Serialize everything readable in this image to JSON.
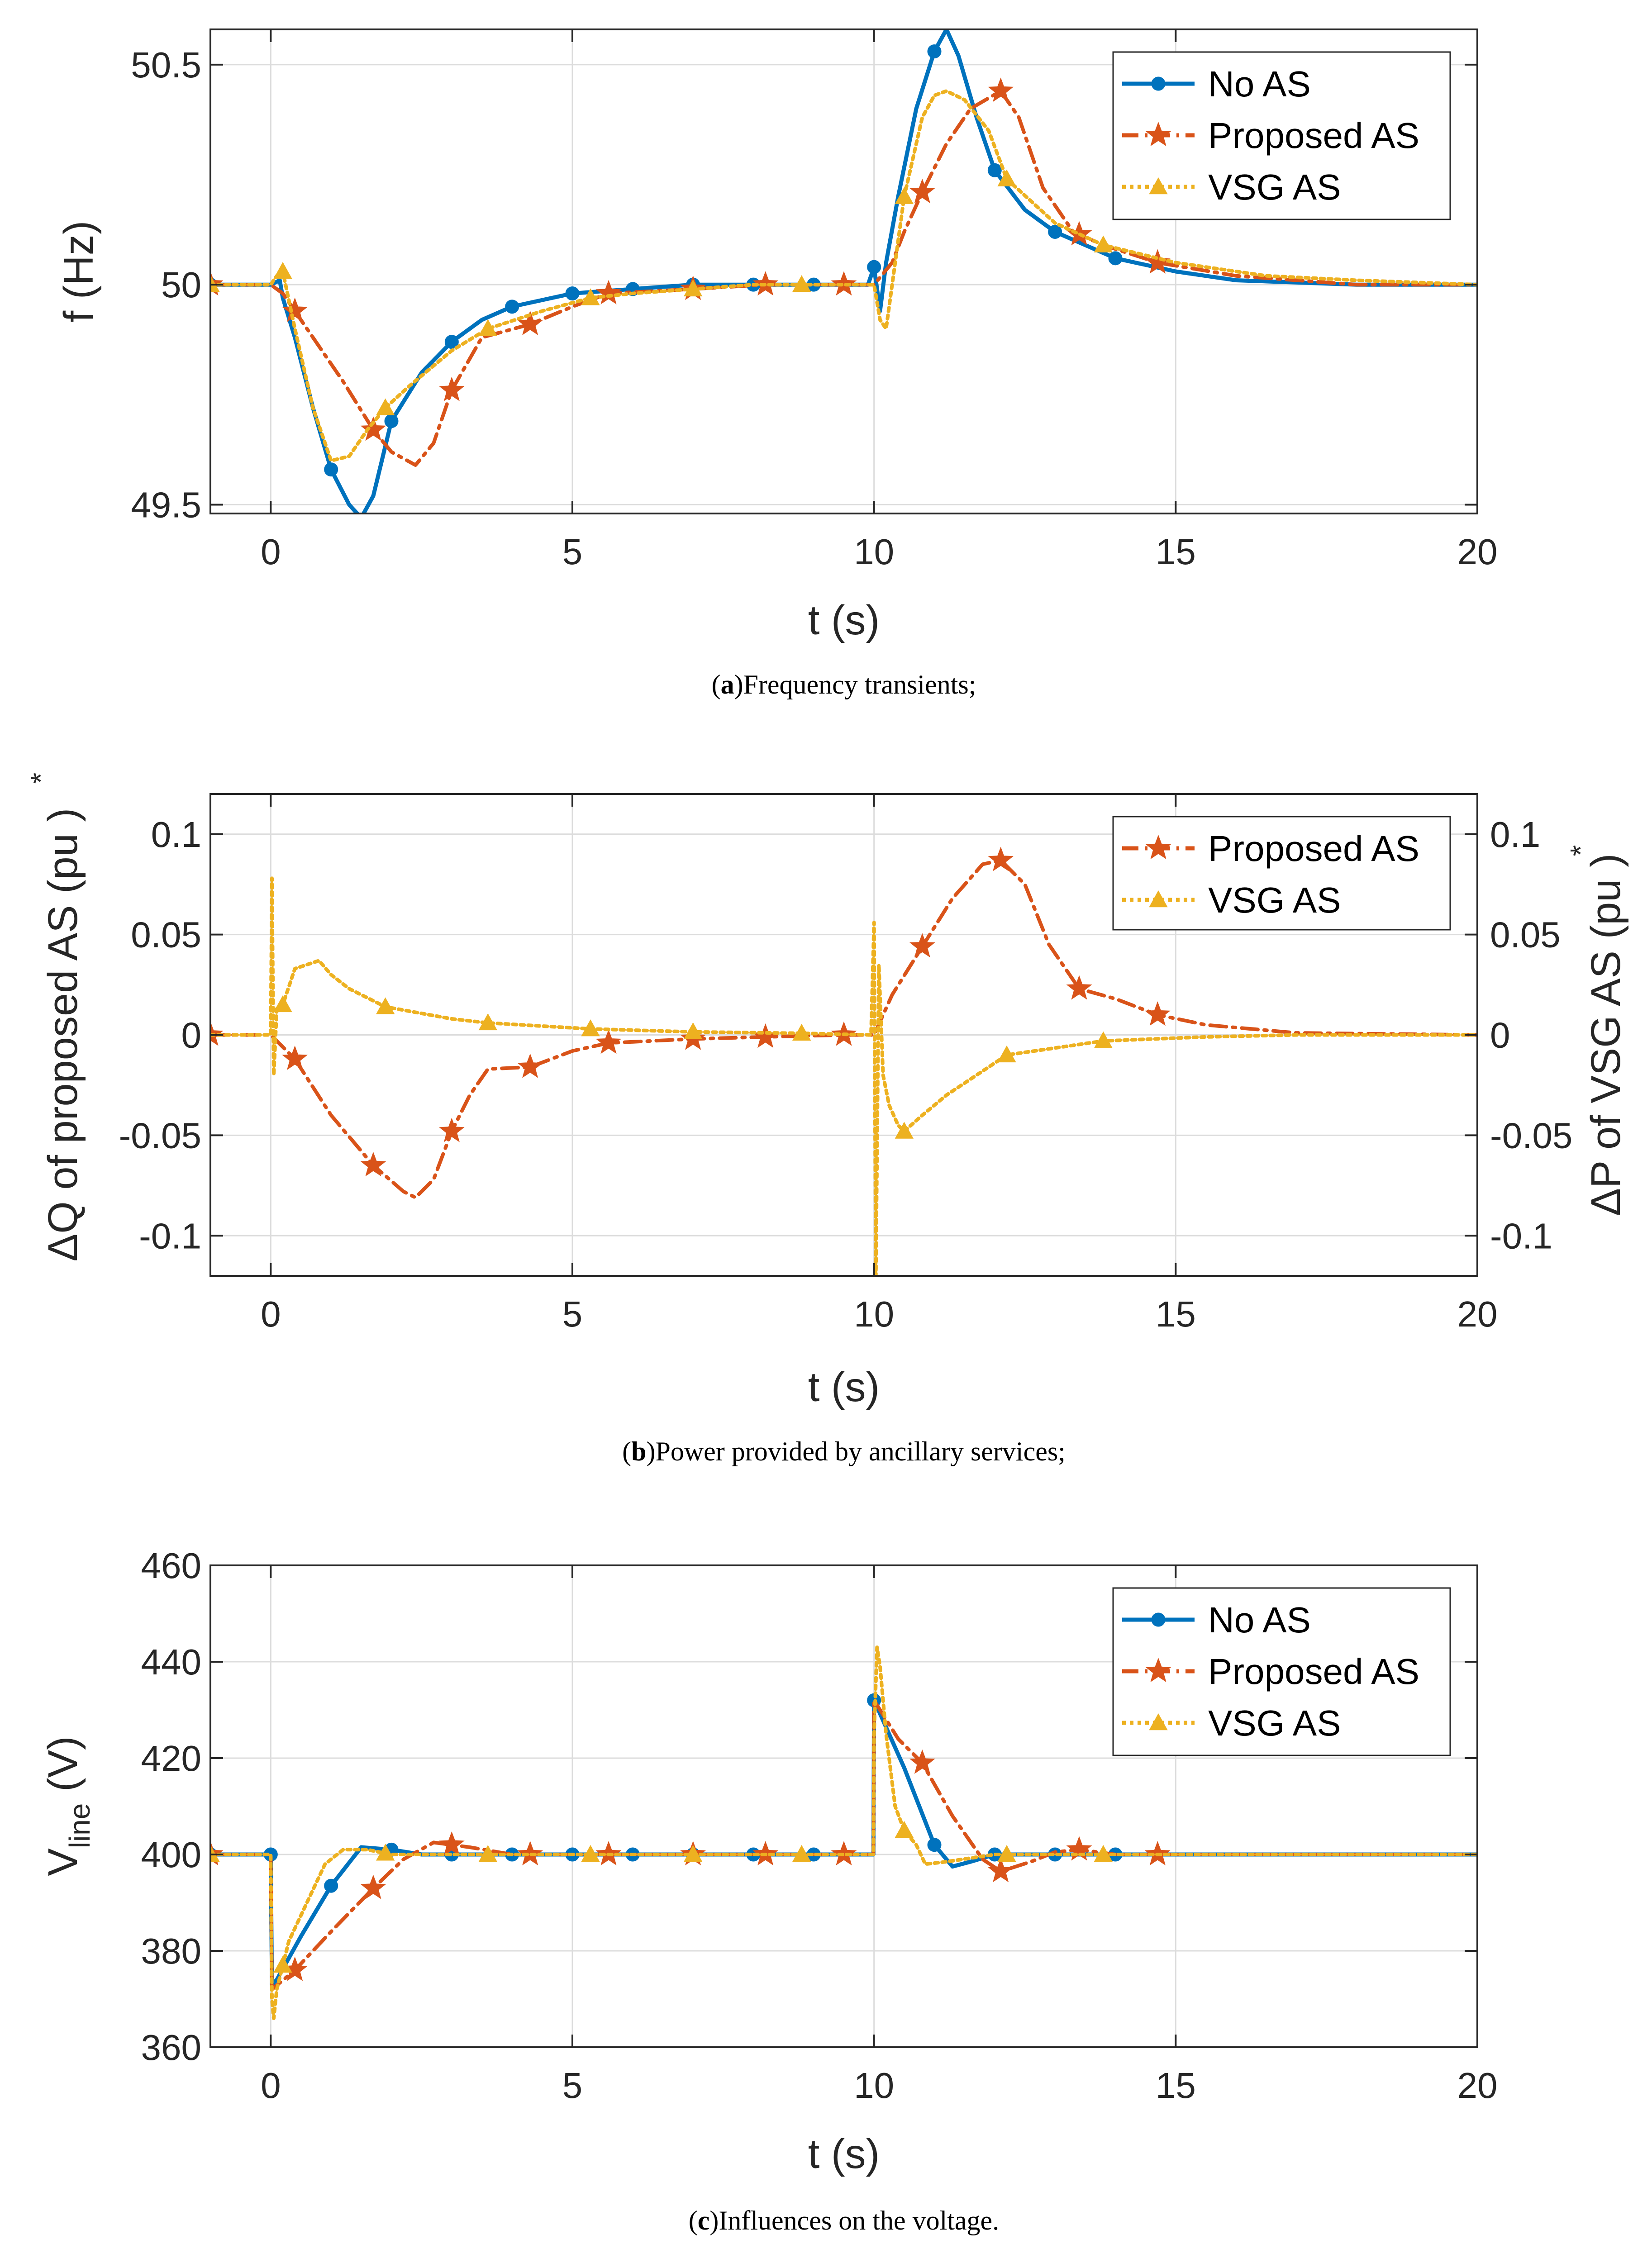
{
  "colors": {
    "blue": "#0072BD",
    "orange": "#D95319",
    "yellow": "#EDB120",
    "grid": "#dcdcdc",
    "axis": "#262626"
  },
  "chart_data": [
    {
      "type": "line",
      "caption_label": "a",
      "caption_text": "Frequency transients;",
      "xlabel": "t (s)",
      "ylabel": "f (Hz)",
      "xlim": [
        -1,
        20
      ],
      "ylim": [
        49.48,
        50.58
      ],
      "xticks": [
        "0",
        "5",
        "10",
        "15",
        "20"
      ],
      "yticks": [
        "49.5",
        "50",
        "50.5"
      ],
      "grid": true,
      "legend_position": "top-right",
      "series": [
        {
          "name": "No AS",
          "marker": "circle",
          "style": "solid",
          "x": [
            -1,
            0,
            0.15,
            0.2,
            0.4,
            0.7,
            1.0,
            1.3,
            1.5,
            1.7,
            2.0,
            2.5,
            3.0,
            3.5,
            4.0,
            5.0,
            6.0,
            7.0,
            8.0,
            9.0,
            9.9,
            10.0,
            10.1,
            10.2,
            10.4,
            10.7,
            11.0,
            11.2,
            11.4,
            11.7,
            12.0,
            12.5,
            13.0,
            14.0,
            15.0,
            16.0,
            18.0,
            20.0
          ],
          "y": [
            50,
            50.0,
            50.01,
            49.97,
            49.88,
            49.72,
            49.58,
            49.5,
            49.47,
            49.52,
            49.69,
            49.8,
            49.87,
            49.92,
            49.95,
            49.98,
            49.99,
            50.0,
            50.0,
            50.0,
            50.0,
            50.04,
            49.94,
            50.05,
            50.2,
            50.4,
            50.53,
            50.58,
            50.52,
            50.38,
            50.26,
            50.17,
            50.12,
            50.06,
            50.03,
            50.01,
            50.0,
            50.0
          ],
          "markers_x": [
            -1,
            1.0,
            2.0,
            3.0,
            4.0,
            5.0,
            6.0,
            7.0,
            8.0,
            9.0,
            10.0,
            11.0,
            12.0,
            13.0,
            14.0
          ]
        },
        {
          "name": "Proposed AS",
          "marker": "star",
          "style": "dashdot",
          "x": [
            -1,
            0,
            0.2,
            0.4,
            0.8,
            1.2,
            1.7,
            2.0,
            2.4,
            2.7,
            3.0,
            3.5,
            4.3,
            5.0,
            5.6,
            7.0,
            8.2,
            9.5,
            10.0,
            10.3,
            10.5,
            10.8,
            11.2,
            11.6,
            12.1,
            12.4,
            12.8,
            13.3,
            13.8,
            14.7,
            16.0,
            18.0,
            20.0
          ],
          "y": [
            50,
            50.0,
            49.98,
            49.94,
            49.86,
            49.78,
            49.67,
            49.62,
            49.59,
            49.64,
            49.76,
            49.88,
            49.91,
            49.95,
            49.98,
            49.99,
            50.0,
            50.0,
            50.0,
            50.05,
            50.12,
            50.21,
            50.32,
            50.4,
            50.44,
            50.38,
            50.22,
            50.12,
            50.09,
            50.05,
            50.02,
            50.0,
            50.0
          ],
          "markers_x": [
            -1,
            0.4,
            1.7,
            3.0,
            4.3,
            5.6,
            7.0,
            8.2,
            9.5,
            10.8,
            12.1,
            13.4,
            14.7
          ]
        },
        {
          "name": "VSG AS",
          "marker": "triangle",
          "style": "dotted",
          "x": [
            -1,
            0,
            0.1,
            0.2,
            0.4,
            0.7,
            1.0,
            1.3,
            1.6,
            1.9,
            2.3,
            3.0,
            3.6,
            4.5,
            5.3,
            6.0,
            7.0,
            8.0,
            8.8,
            10.0,
            10.1,
            10.2,
            10.3,
            10.5,
            10.8,
            11.0,
            11.2,
            11.5,
            11.9,
            12.2,
            13.0,
            13.8,
            15.0,
            16.5,
            18.0,
            20.0
          ],
          "y": [
            50,
            50.0,
            50.02,
            50.03,
            49.9,
            49.72,
            49.6,
            49.61,
            49.67,
            49.72,
            49.77,
            49.85,
            49.9,
            49.94,
            49.97,
            49.98,
            49.99,
            50.0,
            50.0,
            50.0,
            49.92,
            49.9,
            50.0,
            50.2,
            50.38,
            50.43,
            50.44,
            50.42,
            50.35,
            50.24,
            50.14,
            50.09,
            50.05,
            50.02,
            50.01,
            50.0
          ],
          "markers_x": [
            -1,
            0.2,
            1.9,
            3.6,
            5.3,
            7.0,
            8.8,
            10.5,
            12.2,
            13.8
          ]
        }
      ]
    },
    {
      "type": "line",
      "caption_label": "b",
      "caption_text": "Power provided by ancillary services;",
      "xlabel": "t (s)",
      "ylabel": "ΔQ of proposed AS (pu )",
      "ylabel_superscript": "*",
      "ylabel_right": "ΔP of VSG AS (pu )",
      "ylabel_right_superscript": "*",
      "xlim": [
        -1,
        20
      ],
      "ylim": [
        -0.12,
        0.12
      ],
      "xticks": [
        "0",
        "5",
        "10",
        "15",
        "20"
      ],
      "yticks": [
        "-0.1",
        "-0.05",
        "0",
        "0.05",
        "0.1"
      ],
      "grid": true,
      "legend_position": "top-right",
      "series": [
        {
          "name": "Proposed AS",
          "marker": "star",
          "style": "dashdot",
          "x": [
            -1,
            0,
            0.4,
            1.0,
            1.7,
            2.2,
            2.4,
            2.7,
            3.0,
            3.3,
            3.6,
            4.3,
            5.0,
            5.6,
            7.0,
            8.2,
            9.5,
            10.0,
            10.3,
            10.8,
            11.3,
            11.8,
            12.1,
            12.5,
            12.9,
            13.4,
            14.0,
            14.7,
            15.5,
            17.0,
            20.0
          ],
          "y": [
            0,
            0.0,
            -0.012,
            -0.04,
            -0.065,
            -0.078,
            -0.081,
            -0.072,
            -0.048,
            -0.03,
            -0.017,
            -0.016,
            -0.008,
            -0.004,
            -0.002,
            -0.001,
            0.0,
            0.0,
            0.02,
            0.044,
            0.068,
            0.085,
            0.087,
            0.075,
            0.045,
            0.023,
            0.018,
            0.01,
            0.005,
            0.001,
            0.0
          ],
          "markers_x": [
            -1,
            0.4,
            1.7,
            3.0,
            4.3,
            5.6,
            7.0,
            8.2,
            9.5,
            10.8,
            12.1,
            13.4,
            14.7
          ]
        },
        {
          "name": "VSG AS",
          "marker": "triangle",
          "style": "dotted",
          "x": [
            -1,
            0,
            0.02,
            0.05,
            0.1,
            0.2,
            0.4,
            0.6,
            0.8,
            1.0,
            1.3,
            1.9,
            3.0,
            3.6,
            5.3,
            7.0,
            8.8,
            9.95,
            10.0,
            10.03,
            10.08,
            10.15,
            10.25,
            10.4,
            10.5,
            10.8,
            11.2,
            12.2,
            13.8,
            15.5,
            17.0,
            20.0
          ],
          "y": [
            0,
            0.0,
            0.078,
            -0.02,
            0.013,
            0.015,
            0.033,
            0.035,
            0.037,
            0.03,
            0.023,
            0.014,
            0.008,
            0.006,
            0.003,
            0.0015,
            0.0008,
            0.0,
            0.056,
            -0.12,
            0.035,
            -0.02,
            -0.035,
            -0.045,
            -0.048,
            -0.04,
            -0.03,
            -0.01,
            -0.003,
            -0.001,
            0.0,
            0.0
          ],
          "markers_x": [
            0.2,
            1.9,
            3.6,
            5.3,
            7.0,
            8.8,
            10.5,
            12.2,
            13.8
          ]
        }
      ]
    },
    {
      "type": "line",
      "caption_label": "c",
      "caption_text": "Influences on the voltage.",
      "xlabel": "t (s)",
      "ylabel": "V",
      "ylabel_subscript": "line",
      "ylabel_suffix": " (V)",
      "xlim": [
        -1,
        20
      ],
      "ylim": [
        360,
        460
      ],
      "xticks": [
        "0",
        "5",
        "10",
        "15",
        "20"
      ],
      "yticks": [
        "360",
        "380",
        "400",
        "420",
        "440",
        "460"
      ],
      "grid": true,
      "legend_position": "top-right",
      "series": [
        {
          "name": "No AS",
          "marker": "circle",
          "style": "solid",
          "x": [
            -1,
            0,
            0.02,
            0.1,
            0.5,
            1.0,
            1.5,
            2.0,
            2.5,
            3.0,
            5.0,
            8.0,
            9.99,
            10.0,
            10.5,
            11.0,
            11.3,
            11.6,
            12.0,
            13.0,
            14.0,
            16.0,
            20.0
          ],
          "y": [
            400,
            400,
            373,
            374,
            383,
            393.5,
            401.5,
            401,
            400,
            400,
            400,
            400,
            400,
            432,
            418,
            402,
            397.5,
            398.5,
            400,
            400,
            400,
            400,
            400
          ],
          "markers_x": [
            -1,
            0,
            1.0,
            2.0,
            3.0,
            4.0,
            5.0,
            6.0,
            7.0,
            8.0,
            9.0,
            10.0,
            11.0,
            12.0,
            13.0,
            14.0
          ]
        },
        {
          "name": "Proposed AS",
          "marker": "star",
          "style": "dashdot",
          "x": [
            -1,
            0,
            0.02,
            0.4,
            1.0,
            1.7,
            2.2,
            2.7,
            3.3,
            4.0,
            5.0,
            8.0,
            9.99,
            10.0,
            10.4,
            10.8,
            11.3,
            11.8,
            12.1,
            12.6,
            13.0,
            13.4,
            14.0,
            15.0,
            20.0
          ],
          "y": [
            400,
            400,
            372,
            376,
            384,
            393,
            399,
            402.5,
            401.5,
            400,
            400,
            400,
            400,
            432,
            424,
            419,
            408,
            399,
            396.5,
            398.5,
            400.5,
            401,
            400,
            400,
            400
          ],
          "markers_x": [
            -1,
            0.4,
            1.7,
            3.0,
            4.3,
            5.6,
            7.0,
            8.2,
            9.5,
            10.8,
            12.1,
            13.4,
            14.7
          ]
        },
        {
          "name": "VSG AS",
          "marker": "triangle",
          "style": "dotted",
          "x": [
            -1,
            0,
            0.02,
            0.05,
            0.1,
            0.3,
            0.6,
            0.9,
            1.2,
            1.6,
            2.0,
            3.0,
            5.0,
            8.0,
            9.99,
            10.0,
            10.05,
            10.1,
            10.2,
            10.35,
            10.5,
            10.7,
            10.85,
            11.2,
            12.0,
            14.0,
            20.0
          ],
          "y": [
            400,
            400,
            370,
            366,
            372,
            382,
            390,
            398,
            401,
            401,
            400,
            400,
            400,
            400,
            400,
            425,
            443,
            439,
            425,
            410,
            405,
            402,
            398,
            398.5,
            400,
            400,
            400
          ],
          "markers_x": [
            -1,
            0.2,
            1.9,
            3.6,
            5.3,
            7.0,
            8.8,
            10.5,
            12.2,
            13.8
          ]
        }
      ]
    }
  ]
}
